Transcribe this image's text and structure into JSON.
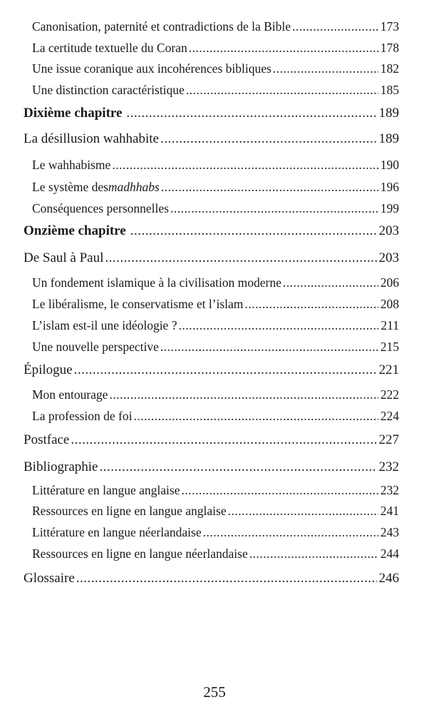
{
  "toc": [
    {
      "level": "sub",
      "label": "Canonisation, paternité et contradictions de la Bible",
      "page": "173"
    },
    {
      "level": "sub",
      "label": "La certitude textuelle du Coran",
      "page": "178"
    },
    {
      "level": "sub",
      "label": "Une issue coranique aux incohérences bibliques",
      "page": "182"
    },
    {
      "level": "sub",
      "label": "Une distinction caractéristique",
      "page": "185"
    },
    {
      "level": "chapter",
      "label": "Dixième chapitre",
      "page": "189"
    },
    {
      "level": "top",
      "label": "La désillusion wahhabite",
      "page": "189"
    },
    {
      "level": "sub",
      "label": "Le wahhabisme",
      "page": "190"
    },
    {
      "level": "sub",
      "label": "Le système des ",
      "label_italic": "madhhabs",
      "page": "196"
    },
    {
      "level": "sub",
      "label": "Conséquences personnelles",
      "page": "199"
    },
    {
      "level": "chapter",
      "label": "Onzième chapitre",
      "page": "203"
    },
    {
      "level": "top",
      "label": "De Saul à Paul",
      "page": "203"
    },
    {
      "level": "sub",
      "label": "Un fondement islamique à la civilisation moderne",
      "page": "206"
    },
    {
      "level": "sub",
      "label": "Le libéralisme, le conservatisme et l’islam",
      "page": "208"
    },
    {
      "level": "sub",
      "label": "L’islam est-il une idéologie ?",
      "page": "211"
    },
    {
      "level": "sub",
      "label": "Une nouvelle perspective",
      "page": "215"
    },
    {
      "level": "top",
      "label": "Épilogue",
      "page": "221"
    },
    {
      "level": "sub",
      "label": "Mon entourage",
      "page": "222"
    },
    {
      "level": "sub",
      "label": "La profession de foi",
      "page": "224"
    },
    {
      "level": "top",
      "label": "Postface",
      "page": "227"
    },
    {
      "level": "top",
      "label": "Bibliographie",
      "page": "232"
    },
    {
      "level": "sub",
      "label": "Littérature en langue anglaise",
      "page": "232"
    },
    {
      "level": "sub",
      "label": "Ressources en ligne en langue anglaise",
      "page": "241"
    },
    {
      "level": "sub",
      "label": "Littérature en langue néerlandaise",
      "page": "243"
    },
    {
      "level": "sub",
      "label": "Ressources en ligne en langue néerlandaise",
      "page": "244"
    },
    {
      "level": "top",
      "label": "Glossaire",
      "page": "246"
    }
  ],
  "page_number": "255"
}
